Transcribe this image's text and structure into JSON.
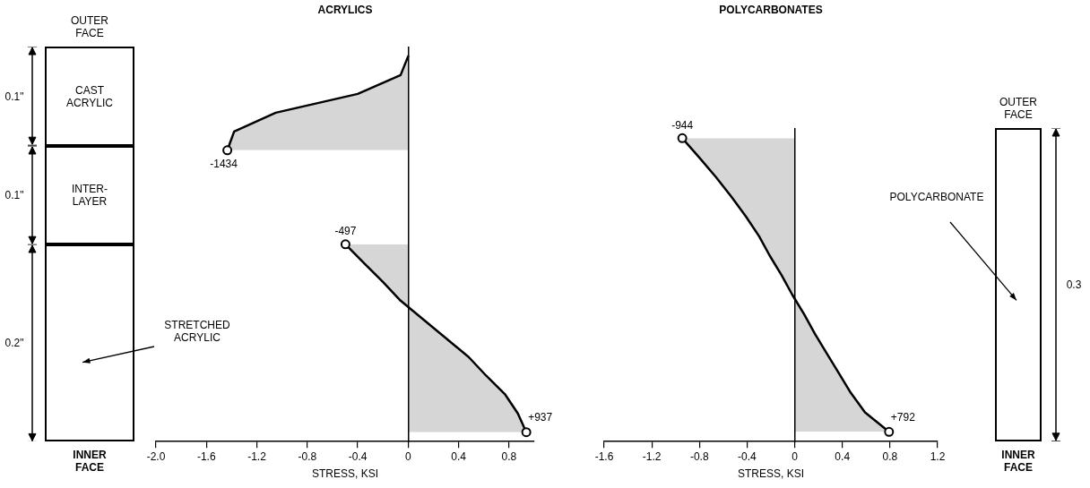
{
  "chart_data": [
    {
      "type": "area",
      "orientation": "horizontal",
      "title": "ACRYLICS",
      "xlabel": "STRESS, KSI",
      "xlim": [
        -2.0,
        1.0
      ],
      "xticks": [
        {
          "value": -2.0,
          "label": "-2.0"
        },
        -1.6,
        -1.2,
        -0.8,
        -0.4,
        0,
        0.4,
        0.8
      ],
      "tick_labels": "x",
      "line_style": "solid",
      "categories": [
        null,
        null,
        null,
        null,
        null,
        null,
        null,
        null,
        null,
        null,
        null,
        null,
        null,
        null,
        null,
        null,
        null,
        null,
        null,
        null,
        null
      ],
      "series": [
        {
          "color": "#000000",
          "values": [
            0,
            -0.06,
            -0.4,
            -1.05,
            -1.38,
            -1.434,
            null,
            null,
            null,
            null,
            -0.497,
            -0.35,
            -0.2,
            -0.06,
            0.12,
            0.3,
            0.48,
            0.62,
            0.77,
            0.87,
            0.937
          ]
        }
      ],
      "annotations": [
        "OUTER FACE",
        "INNER FACE",
        "CAST ACRYLIC",
        "INTER-LAYER",
        "STRETCHED ACRYLIC",
        "0.1\"",
        "0.1\"",
        "0.2\"",
        "-1434",
        "-497",
        "+937"
      ]
    },
    {
      "type": "area",
      "orientation": "horizontal",
      "title": "POLYCARBONATES",
      "xlabel": "STRESS, KSI",
      "xlim": [
        -1.6,
        1.2
      ],
      "xticks": [
        -1.6,
        -1.2,
        -0.8,
        -0.4,
        0,
        0.4,
        0.8,
        1.2
      ],
      "tick_labels": "x",
      "line_style": "solid",
      "categories": [
        null,
        null,
        null,
        null,
        null,
        null,
        null,
        null,
        null,
        null,
        null,
        null,
        null,
        null,
        null,
        null
      ],
      "series": [
        {
          "color": "#000000",
          "values": [
            -0.944,
            -0.8,
            -0.66,
            -0.53,
            -0.41,
            -0.3,
            -0.21,
            -0.11,
            -0.02,
            0.08,
            0.17,
            0.27,
            0.37,
            0.47,
            0.59,
            0.792
          ]
        }
      ],
      "annotations": [
        "OUTER FACE",
        "INNER FACE",
        "POLYCARBONATE",
        "0.3",
        "-944",
        "+792"
      ]
    }
  ]
}
